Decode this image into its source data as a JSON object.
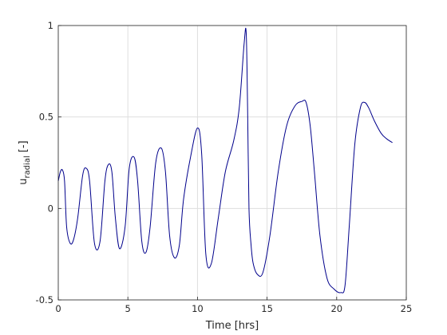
{
  "chart_data": {
    "type": "line",
    "xlabel": "Time [hrs]",
    "ylabel_main": "u",
    "ylabel_sub": "radial",
    "ylabel_suffix": " [-]",
    "xlim": [
      0,
      25
    ],
    "ylim": [
      -0.5,
      1
    ],
    "xticks": [
      0,
      5,
      10,
      15,
      20,
      25
    ],
    "yticks": [
      -0.5,
      0,
      0.5,
      1
    ],
    "xtick_labels": [
      "0",
      "5",
      "10",
      "15",
      "20",
      "25"
    ],
    "ytick_labels": [
      "-0.5",
      "0",
      "0.5",
      "1"
    ],
    "grid": true,
    "series": [
      {
        "color": "#00008b",
        "x": [
          0,
          0.15,
          0.3,
          0.45,
          0.6,
          0.85,
          1.1,
          1.4,
          1.75,
          2.0,
          2.25,
          2.6,
          3.0,
          3.35,
          3.6,
          3.85,
          4.1,
          4.4,
          4.8,
          5.1,
          5.45,
          5.7,
          6.0,
          6.3,
          6.6,
          7.0,
          7.4,
          7.7,
          8.0,
          8.35,
          8.7,
          9.0,
          9.5,
          10.0,
          10.3,
          10.6,
          11.0,
          11.5,
          12.0,
          12.6,
          13.0,
          13.35,
          13.5,
          13.6,
          13.7,
          13.85,
          14.0,
          14.3,
          14.7,
          15.2,
          15.8,
          16.4,
          17.0,
          17.5,
          17.8,
          18.1,
          18.4,
          18.8,
          19.3,
          19.8,
          20.3,
          20.6,
          20.9,
          21.3,
          21.7,
          22.0,
          22.3,
          22.7,
          23.2,
          23.6,
          24.0
        ],
        "y": [
          0.15,
          0.2,
          0.21,
          0.15,
          -0.1,
          -0.19,
          -0.17,
          -0.05,
          0.18,
          0.22,
          0.15,
          -0.19,
          -0.18,
          0.15,
          0.24,
          0.2,
          -0.05,
          -0.22,
          -0.1,
          0.22,
          0.28,
          0.15,
          -0.18,
          -0.24,
          -0.1,
          0.25,
          0.33,
          0.2,
          -0.15,
          -0.27,
          -0.2,
          0.05,
          0.28,
          0.44,
          0.3,
          -0.25,
          -0.3,
          -0.05,
          0.2,
          0.37,
          0.55,
          0.9,
          0.96,
          0.55,
          0.0,
          -0.2,
          -0.3,
          -0.36,
          -0.35,
          -0.15,
          0.2,
          0.45,
          0.56,
          0.585,
          0.58,
          0.45,
          0.2,
          -0.15,
          -0.38,
          -0.44,
          -0.46,
          -0.42,
          -0.1,
          0.35,
          0.55,
          0.58,
          0.55,
          0.48,
          0.41,
          0.38,
          0.36
        ]
      }
    ]
  }
}
